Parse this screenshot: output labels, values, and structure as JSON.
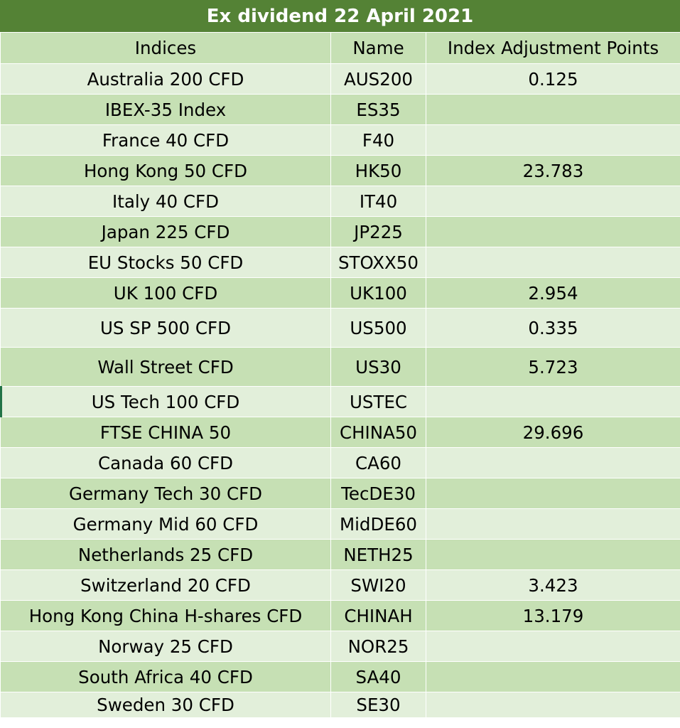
{
  "title": "Ex dividend 22 April 2021",
  "headers": {
    "indices": "Indices",
    "name": "Name",
    "points": "Index Adjustment Points"
  },
  "rows": [
    {
      "index": "Australia 200 CFD",
      "name": "AUS200",
      "points": "0.125"
    },
    {
      "index": "IBEX-35 Index",
      "name": "ES35",
      "points": ""
    },
    {
      "index": "France 40 CFD",
      "name": "F40",
      "points": ""
    },
    {
      "index": "Hong Kong 50 CFD",
      "name": "HK50",
      "points": "23.783"
    },
    {
      "index": "Italy 40 CFD",
      "name": "IT40",
      "points": ""
    },
    {
      "index": "Japan 225 CFD",
      "name": "JP225",
      "points": ""
    },
    {
      "index": "EU Stocks 50 CFD",
      "name": "STOXX50",
      "points": ""
    },
    {
      "index": "UK 100 CFD",
      "name": "UK100",
      "points": "2.954"
    },
    {
      "index": "US SP 500 CFD",
      "name": "US500",
      "points": "0.335"
    },
    {
      "index": "Wall Street CFD",
      "name": "US30",
      "points": "5.723"
    },
    {
      "index": "US Tech 100 CFD",
      "name": "USTEC",
      "points": ""
    },
    {
      "index": "FTSE CHINA 50",
      "name": "CHINA50",
      "points": "29.696"
    },
    {
      "index": "Canada 60 CFD",
      "name": "CA60",
      "points": ""
    },
    {
      "index": "Germany Tech 30 CFD",
      "name": "TecDE30",
      "points": ""
    },
    {
      "index": "Germany Mid 60 CFD",
      "name": "MidDE60",
      "points": ""
    },
    {
      "index": "Netherlands 25 CFD",
      "name": "NETH25",
      "points": ""
    },
    {
      "index": "Switzerland 20 CFD",
      "name": "SWI20",
      "points": "3.423"
    },
    {
      "index": "Hong Kong China H-shares CFD",
      "name": "CHINAH",
      "points": "13.179"
    },
    {
      "index": "Norway 25 CFD",
      "name": "NOR25",
      "points": ""
    },
    {
      "index": "South Africa 40 CFD",
      "name": "SA40",
      "points": ""
    },
    {
      "index": "Sweden 30 CFD",
      "name": "SE30",
      "points": ""
    }
  ]
}
